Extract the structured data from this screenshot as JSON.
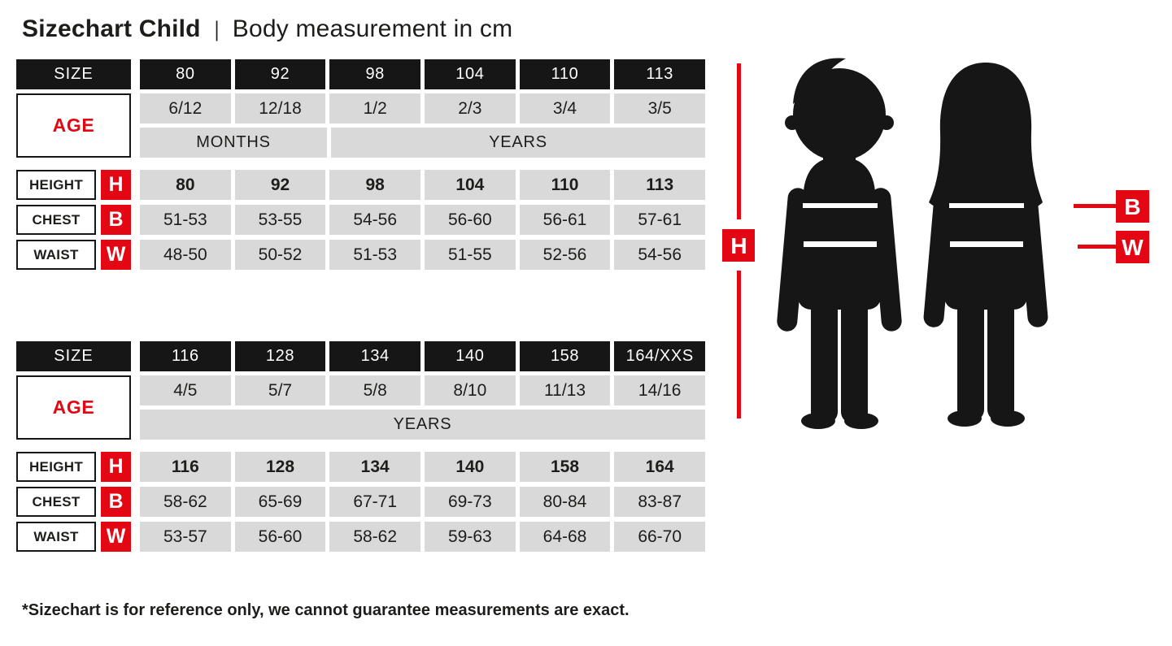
{
  "title": {
    "main": "Sizechart Child",
    "separator": "|",
    "subtitle": "Body measurement in cm"
  },
  "tables": [
    {
      "size_label": "SIZE",
      "age_label": "AGE",
      "sizes": [
        "80",
        "92",
        "98",
        "104",
        "110",
        "113"
      ],
      "ages": [
        "6/12",
        "12/18",
        "1/2",
        "2/3",
        "3/4",
        "3/5"
      ],
      "age_units": [
        {
          "label": "MONTHS",
          "span": 2
        },
        {
          "label": "YEARS",
          "span": 4
        }
      ],
      "rows": [
        {
          "label": "HEIGHT",
          "tag": "H",
          "bold": true,
          "values": [
            "80",
            "92",
            "98",
            "104",
            "110",
            "113"
          ]
        },
        {
          "label": "CHEST",
          "tag": "B",
          "bold": false,
          "values": [
            "51-53",
            "53-55",
            "54-56",
            "56-60",
            "56-61",
            "57-61"
          ]
        },
        {
          "label": "WAIST",
          "tag": "W",
          "bold": false,
          "values": [
            "48-50",
            "50-52",
            "51-53",
            "51-55",
            "52-56",
            "54-56"
          ]
        }
      ]
    },
    {
      "size_label": "SIZE",
      "age_label": "AGE",
      "sizes": [
        "116",
        "128",
        "134",
        "140",
        "158",
        "164/XXS"
      ],
      "ages": [
        "4/5",
        "5/7",
        "5/8",
        "8/10",
        "11/13",
        "14/16"
      ],
      "age_units": [
        {
          "label": "YEARS",
          "span": 6
        }
      ],
      "rows": [
        {
          "label": "HEIGHT",
          "tag": "H",
          "bold": true,
          "values": [
            "116",
            "128",
            "134",
            "140",
            "158",
            "164"
          ]
        },
        {
          "label": "CHEST",
          "tag": "B",
          "bold": false,
          "values": [
            "58-62",
            "65-69",
            "67-71",
            "69-73",
            "80-84",
            "83-87"
          ]
        },
        {
          "label": "WAIST",
          "tag": "W",
          "bold": false,
          "values": [
            "53-57",
            "56-60",
            "58-62",
            "59-63",
            "64-68",
            "66-70"
          ]
        }
      ]
    }
  ],
  "figure": {
    "height_tag": "H",
    "chest_tag": "B",
    "waist_tag": "W",
    "silhouettes": [
      "boy",
      "girl"
    ]
  },
  "footnote": "*Sizechart is for reference only, we cannot guarantee measurements are exact.",
  "colors": {
    "black": "#161616",
    "gray": "#d9d9d9",
    "red": "#e30613",
    "white": "#ffffff"
  }
}
